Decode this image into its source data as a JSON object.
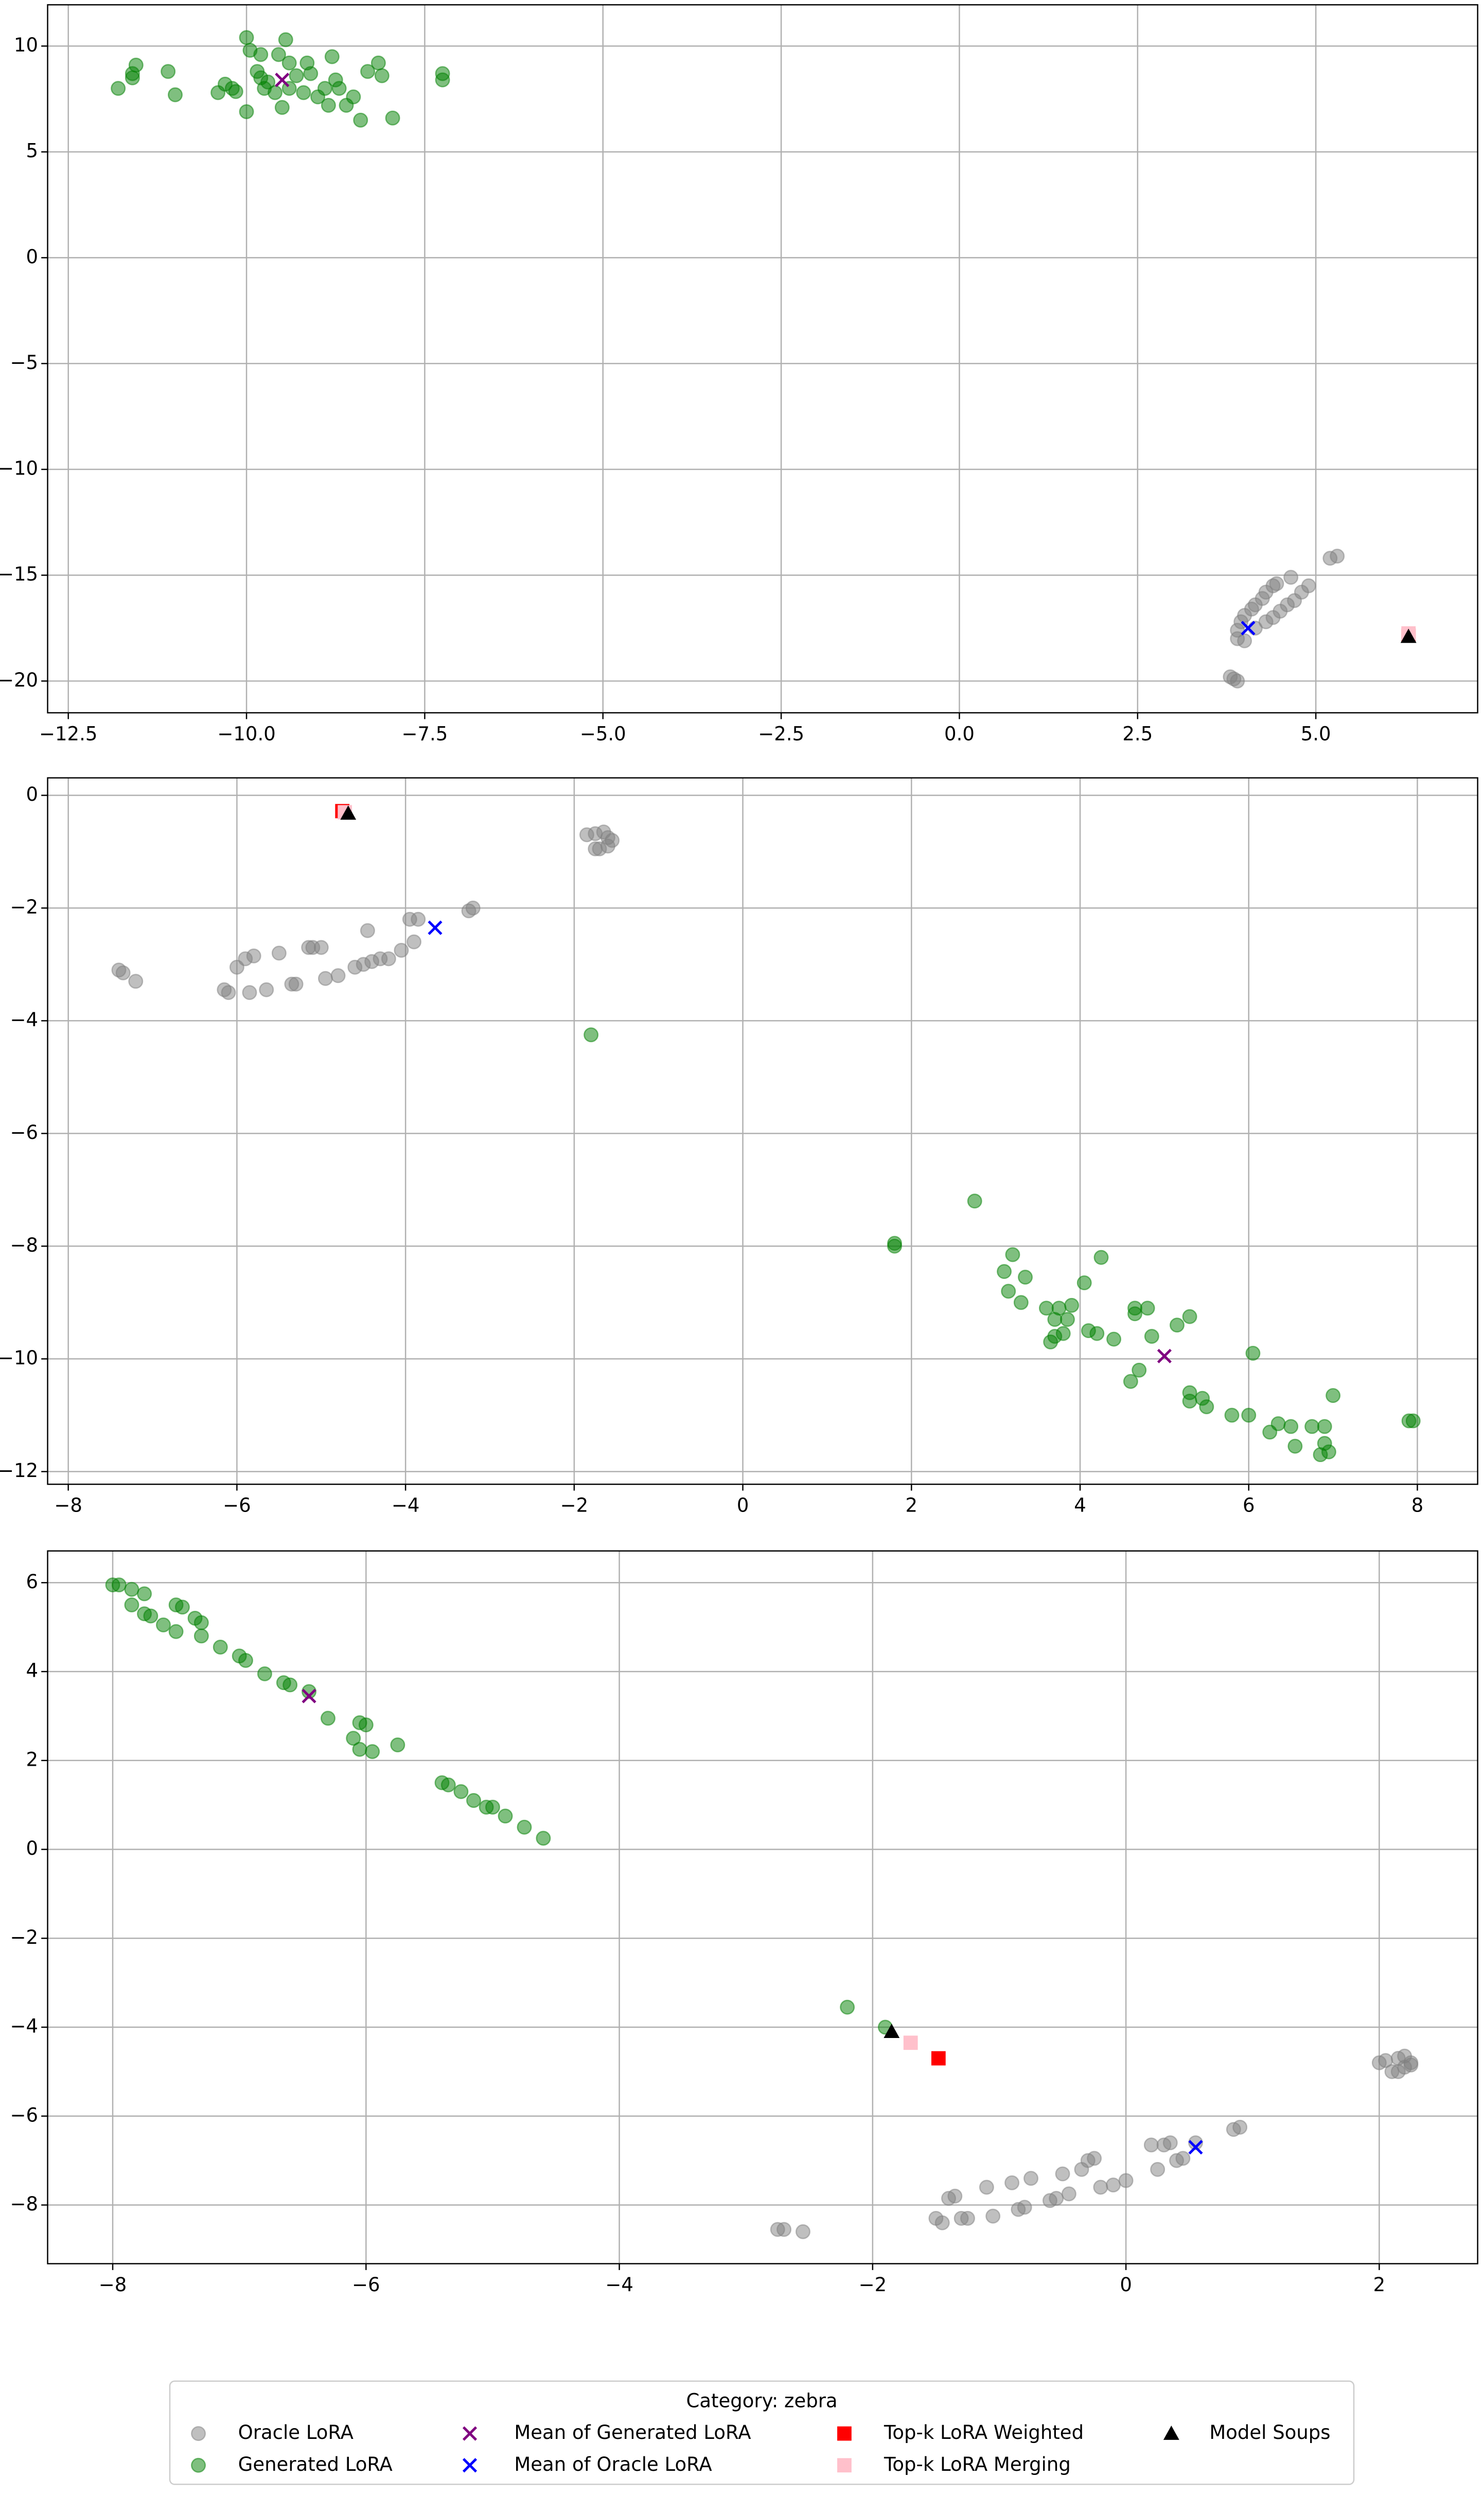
{
  "legend_title": "Category: zebra",
  "chart_data": [
    {
      "type": "scatter",
      "grid": true,
      "xlim": [
        -12.79,
        7.27
      ],
      "ylim": [
        -21.5,
        11.95
      ],
      "xticks": [
        {
          "value": -12.5,
          "label": "−12.5"
        },
        {
          "value": -10,
          "label": "−10.0"
        },
        {
          "value": -7.5,
          "label": "−7.5"
        },
        {
          "value": -5,
          "label": "−5.0"
        },
        {
          "value": -2.5,
          "label": "−2.5"
        },
        {
          "value": 0,
          "label": "0.0"
        },
        2.5,
        {
          "value": 5,
          "label": "5.0"
        }
      ],
      "yticks": [
        10,
        5,
        0,
        {
          "value": -5,
          "label": "−5"
        },
        {
          "value": -10,
          "label": "−10"
        },
        {
          "value": -15,
          "label": "−15"
        },
        {
          "value": -20,
          "label": "−20"
        }
      ],
      "series": [
        {
          "name": "Oracle LoRA",
          "color": "#808080",
          "marker": "o",
          "alpha": 0.5,
          "x": [
            3.8,
            3.85,
            3.9,
            3.9,
            3.9,
            3.95,
            4.0,
            4.1,
            4.15,
            4.25,
            4.3,
            4.4,
            4.45,
            4.15,
            4.3,
            4.4,
            4.5,
            4.6,
            4.7,
            4.8,
            4.9,
            4.65,
            5.2,
            5.3,
            4.0
          ],
          "values": [
            -19.8,
            -19.9,
            -20.0,
            -18.0,
            -17.6,
            -17.2,
            -16.9,
            -16.6,
            -16.4,
            -16.1,
            -15.8,
            -15.5,
            -15.4,
            -17.5,
            -17.2,
            -17.0,
            -16.7,
            -16.4,
            -16.2,
            -15.8,
            -15.5,
            -15.1,
            -14.2,
            -14.1,
            -18.1
          ]
        },
        {
          "name": "Generated LoRA",
          "color": "#008000",
          "marker": "o",
          "alpha": 0.5,
          "x": [
            -11.8,
            -11.6,
            -11.55,
            -11.6,
            -11.1,
            -11.0,
            -10.4,
            -10.3,
            -10.2,
            -10.15,
            -10.0,
            -9.95,
            -10.0,
            -9.85,
            -9.8,
            -9.8,
            -9.75,
            -9.7,
            -9.6,
            -9.55,
            -9.5,
            -9.45,
            -9.4,
            -9.4,
            -9.3,
            -9.2,
            -9.15,
            -9.1,
            -9.0,
            -8.9,
            -8.85,
            -8.8,
            -8.75,
            -8.7,
            -8.6,
            -8.5,
            -8.4,
            -8.3,
            -8.15,
            -8.1,
            -7.95,
            -7.25,
            -7.25
          ],
          "values": [
            8.0,
            8.5,
            9.1,
            8.7,
            8.8,
            7.7,
            7.8,
            8.2,
            8.0,
            7.85,
            10.4,
            9.8,
            6.9,
            8.8,
            8.5,
            9.6,
            8.0,
            8.3,
            7.8,
            9.6,
            7.1,
            10.3,
            8.0,
            9.2,
            8.6,
            7.8,
            9.2,
            8.7,
            7.6,
            8.0,
            7.2,
            9.5,
            8.4,
            8.0,
            7.2,
            7.6,
            6.5,
            8.8,
            9.2,
            8.6,
            6.6,
            8.4,
            8.7
          ]
        },
        {
          "name": "Mean of Generated LoRA",
          "color": "#800080",
          "marker": "x",
          "alpha": 1,
          "x": [
            -9.5
          ],
          "values": [
            8.4
          ]
        },
        {
          "name": "Mean of Oracle LoRA",
          "color": "#0000ff",
          "marker": "x",
          "alpha": 1,
          "x": [
            4.05
          ],
          "values": [
            -17.5
          ]
        },
        {
          "name": "Top-k LoRA Weighted",
          "color": "#ff0000",
          "marker": "s",
          "alpha": 1,
          "x": [
            6.3
          ],
          "values": [
            -17.85
          ]
        },
        {
          "name": "Top-k LoRA Merging",
          "color": "#ffc0cb",
          "marker": "s",
          "alpha": 1,
          "x": [
            6.3
          ],
          "values": [
            -17.75
          ]
        },
        {
          "name": "Model Soups",
          "color": "#000000",
          "marker": "^",
          "alpha": 1,
          "x": [
            6.3
          ],
          "values": [
            -17.9
          ]
        }
      ]
    },
    {
      "type": "scatter",
      "grid": true,
      "xlim": [
        -8.245,
        8.715
      ],
      "ylim": [
        -12.225,
        0.31
      ],
      "xticks": [
        {
          "value": -8,
          "label": "−8"
        },
        {
          "value": -6,
          "label": "−6"
        },
        {
          "value": -4,
          "label": "−4"
        },
        {
          "value": -2,
          "label": "−2"
        },
        0,
        2,
        4,
        6,
        8
      ],
      "yticks": [
        0,
        {
          "value": -2,
          "label": "−2"
        },
        {
          "value": -4,
          "label": "−4"
        },
        {
          "value": -6,
          "label": "−6"
        },
        {
          "value": -8,
          "label": "−8"
        },
        {
          "value": -10,
          "label": "−10"
        },
        {
          "value": -12,
          "label": "−12"
        }
      ],
      "series": [
        {
          "name": "Oracle LoRA",
          "color": "#808080",
          "marker": "o",
          "alpha": 0.5,
          "x": [
            -7.4,
            -7.35,
            -7.2,
            -6.1,
            -6.15,
            -6.0,
            -5.9,
            -5.85,
            -5.8,
            -5.65,
            -5.5,
            -5.35,
            -5.3,
            -5.15,
            -5.1,
            -5.0,
            -4.95,
            -4.8,
            -4.6,
            -4.5,
            -4.4,
            -4.3,
            -4.2,
            -4.45,
            -4.05,
            -3.95,
            -3.85,
            -3.9,
            -3.25,
            -3.2,
            -1.85,
            -1.75,
            -1.65,
            -1.6,
            -1.7,
            -1.75,
            -1.6,
            -1.55
          ],
          "values": [
            -3.1,
            -3.15,
            -3.3,
            -3.5,
            -3.45,
            -3.05,
            -2.9,
            -3.5,
            -2.85,
            -3.45,
            -2.8,
            -3.35,
            -3.35,
            -2.7,
            -2.7,
            -2.7,
            -3.25,
            -3.2,
            -3.05,
            -3.0,
            -2.95,
            -2.9,
            -2.9,
            -2.4,
            -2.75,
            -2.2,
            -2.2,
            -2.6,
            -2.05,
            -2.0,
            -0.7,
            -0.68,
            -0.65,
            -0.75,
            -0.95,
            -0.95,
            -0.9,
            -0.8
          ]
        },
        {
          "name": "Generated LoRA",
          "color": "#008000",
          "marker": "o",
          "alpha": 0.5,
          "x": [
            -1.8,
            1.8,
            1.8,
            2.75,
            3.1,
            3.2,
            3.15,
            3.3,
            3.35,
            3.6,
            3.7,
            3.75,
            3.7,
            3.65,
            3.8,
            3.85,
            3.9,
            4.05,
            4.1,
            4.2,
            4.25,
            4.4,
            4.6,
            4.65,
            4.7,
            4.65,
            4.8,
            4.85,
            5.15,
            5.3,
            5.3,
            5.3,
            5.45,
            5.5,
            5.8,
            6.0,
            6.05,
            6.25,
            6.35,
            6.5,
            6.55,
            6.75,
            6.85,
            6.9,
            6.9,
            6.95,
            7.0,
            7.9,
            7.95
          ],
          "values": [
            -4.25,
            -7.95,
            -8.0,
            -7.2,
            -8.45,
            -8.15,
            -8.8,
            -9.0,
            -8.55,
            -9.1,
            -9.3,
            -9.1,
            -9.6,
            -9.7,
            -9.55,
            -9.3,
            -9.05,
            -8.65,
            -9.5,
            -9.55,
            -8.2,
            -9.65,
            -10.4,
            -9.2,
            -10.2,
            -9.1,
            -9.1,
            -9.6,
            -9.4,
            -9.25,
            -10.6,
            -10.75,
            -10.7,
            -10.85,
            -11.0,
            -11.0,
            -9.9,
            -11.3,
            -11.15,
            -11.2,
            -11.55,
            -11.2,
            -11.7,
            -11.5,
            -11.2,
            -11.65,
            -10.65,
            -11.1,
            -11.1
          ]
        },
        {
          "name": "Mean of Generated LoRA",
          "color": "#800080",
          "marker": "x",
          "alpha": 1,
          "x": [
            5.0
          ],
          "values": [
            -9.95
          ]
        },
        {
          "name": "Mean of Oracle LoRA",
          "color": "#0000ff",
          "marker": "x",
          "alpha": 1,
          "x": [
            -3.65
          ],
          "values": [
            -2.35
          ]
        },
        {
          "name": "Top-k LoRA Weighted",
          "color": "#ff0000",
          "marker": "s",
          "alpha": 1,
          "x": [
            -4.75
          ],
          "values": [
            -0.28
          ]
        },
        {
          "name": "Top-k LoRA Merging",
          "color": "#ffc0cb",
          "marker": "s",
          "alpha": 1,
          "x": [
            -4.72
          ],
          "values": [
            -0.3
          ]
        },
        {
          "name": "Model Soups",
          "color": "#000000",
          "marker": "^",
          "alpha": 1,
          "x": [
            -4.68
          ],
          "values": [
            -0.32
          ]
        }
      ]
    },
    {
      "type": "scatter",
      "grid": true,
      "xlim": [
        -8.514,
        2.777
      ],
      "ylim": [
        -9.32,
        6.714
      ],
      "xticks": [
        {
          "value": -8,
          "label": "−8"
        },
        {
          "value": -6,
          "label": "−6"
        },
        {
          "value": -4,
          "label": "−4"
        },
        {
          "value": -2,
          "label": "−2"
        },
        0,
        2
      ],
      "yticks": [
        6,
        4,
        2,
        0,
        {
          "value": -2,
          "label": "−2"
        },
        {
          "value": -4,
          "label": "−4"
        },
        {
          "value": -6,
          "label": "−6"
        },
        {
          "value": -8,
          "label": "−8"
        }
      ],
      "series": [
        {
          "name": "Oracle LoRA",
          "color": "#808080",
          "marker": "o",
          "alpha": 0.5,
          "x": [
            -2.75,
            -2.7,
            -2.55,
            -1.5,
            -1.45,
            -1.4,
            -1.35,
            -1.3,
            -1.25,
            -1.1,
            -1.05,
            -0.9,
            -0.85,
            -0.8,
            -0.75,
            -0.6,
            -0.55,
            -0.5,
            -0.45,
            -0.35,
            -0.3,
            -0.25,
            -0.2,
            -0.1,
            0,
            0.2,
            0.25,
            0.3,
            0.35,
            0.4,
            0.45,
            0.55,
            0.85,
            0.9,
            2.0,
            2.05,
            2.1,
            2.15,
            2.2,
            2.15,
            2.2,
            2.25,
            2.25
          ],
          "values": [
            -8.55,
            -8.55,
            -8.6,
            -8.3,
            -8.4,
            -7.85,
            -7.8,
            -8.3,
            -8.3,
            -7.6,
            -8.25,
            -7.5,
            -8.1,
            -8.05,
            -7.4,
            -7.9,
            -7.85,
            -7.3,
            -7.75,
            -7.2,
            -7.0,
            -6.95,
            -7.6,
            -7.55,
            -7.45,
            -6.65,
            -7.2,
            -6.65,
            -6.6,
            -7.0,
            -6.95,
            -6.6,
            -6.3,
            -6.25,
            -4.8,
            -4.75,
            -5.0,
            -4.7,
            -4.65,
            -5.0,
            -4.9,
            -4.8,
            -4.85
          ]
        },
        {
          "name": "Generated LoRA",
          "color": "#008000",
          "marker": "o",
          "alpha": 0.5,
          "x": [
            -8.0,
            -7.95,
            -7.85,
            -7.85,
            -7.75,
            -7.7,
            -7.75,
            -7.6,
            -7.5,
            -7.45,
            -7.5,
            -7.35,
            -7.3,
            -7.3,
            -7.15,
            -7.0,
            -6.95,
            -6.8,
            -6.65,
            -6.6,
            -6.45,
            -6.3,
            -6.1,
            -6.05,
            -6.0,
            -6.05,
            -5.95,
            -5.75,
            -5.4,
            -5.35,
            -5.25,
            -5.15,
            -5.05,
            -5.0,
            -4.9,
            -4.75,
            -4.6,
            -2.2,
            -1.9
          ],
          "values": [
            5.95,
            5.95,
            5.85,
            5.5,
            5.3,
            5.25,
            5.75,
            5.05,
            5.5,
            5.45,
            4.9,
            5.2,
            5.1,
            4.8,
            4.55,
            4.35,
            4.25,
            3.95,
            3.75,
            3.7,
            3.55,
            2.95,
            2.5,
            2.85,
            2.8,
            2.25,
            2.2,
            2.35,
            1.5,
            1.45,
            1.3,
            1.1,
            0.95,
            0.95,
            0.75,
            0.5,
            0.25,
            -3.55,
            -4.0
          ]
        },
        {
          "name": "Mean of Generated LoRA",
          "color": "#800080",
          "marker": "x",
          "alpha": 1,
          "x": [
            -6.45
          ],
          "values": [
            3.45
          ]
        },
        {
          "name": "Mean of Oracle LoRA",
          "color": "#0000ff",
          "marker": "x",
          "alpha": 1,
          "x": [
            0.55
          ],
          "values": [
            -6.7
          ]
        },
        {
          "name": "Top-k LoRA Weighted",
          "color": "#ff0000",
          "marker": "s",
          "alpha": 1,
          "x": [
            -1.48
          ],
          "values": [
            -4.7
          ]
        },
        {
          "name": "Top-k LoRA Merging",
          "color": "#ffc0cb",
          "marker": "s",
          "alpha": 1,
          "x": [
            -1.7
          ],
          "values": [
            -4.35
          ]
        },
        {
          "name": "Model Soups",
          "color": "#000000",
          "marker": "^",
          "alpha": 1,
          "x": [
            -1.85
          ],
          "values": [
            -4.1
          ]
        }
      ]
    }
  ]
}
